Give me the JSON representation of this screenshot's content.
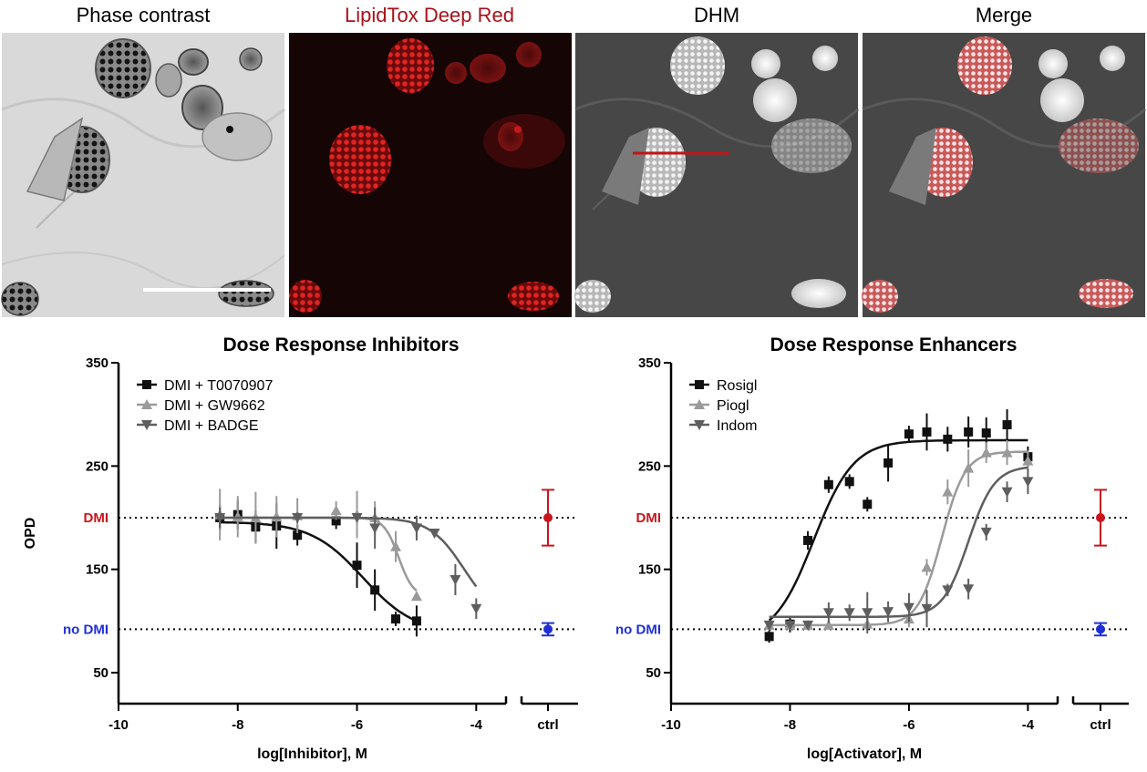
{
  "panels": [
    {
      "id": "phase",
      "title": "Phase contrast",
      "title_color": "#000000"
    },
    {
      "id": "lipid",
      "title": "LipidTox Deep Red",
      "title_color": "#a8121a"
    },
    {
      "id": "dhm",
      "title": "DHM",
      "title_color": "#000000"
    },
    {
      "id": "merge",
      "title": "Merge",
      "title_color": "#000000"
    }
  ],
  "colors": {
    "black_series": "#111111",
    "light_gray_series": "#9a9a9a",
    "dark_gray_series": "#5e5e5e",
    "dmi_ref": "#c8161e",
    "no_dmi_ref": "#1f2fd6",
    "lipid_red": "#d42020"
  },
  "chart_data": [
    {
      "type": "line",
      "title": "Dose Response Inhibitors",
      "xlabel": "log[Inhibitor], M",
      "ylabel": "OPD",
      "xlim": [
        -10,
        -3.5
      ],
      "ylim": [
        20,
        350
      ],
      "xticks": [
        -10,
        -8,
        -6,
        -4
      ],
      "yticks": [
        50,
        150,
        250,
        350
      ],
      "ctrl_label": "ctrl",
      "legend_position": "top-left",
      "reference_lines": [
        {
          "label": "DMI",
          "y": 200,
          "color": "#c8161e",
          "ctrl_mean": 200,
          "ctrl_err": 27
        },
        {
          "label": "no DMI",
          "y": 92,
          "color": "#1f2fd6",
          "ctrl_mean": 92,
          "ctrl_err": 6
        }
      ],
      "series": [
        {
          "name": "DMI + T0070907",
          "marker": "square",
          "color": "#111111",
          "curve": {
            "bottom": 88,
            "top": 196,
            "log_ec50": -5.9,
            "hill": -1.0,
            "x_range": [
              -8.3,
              -5.0
            ]
          },
          "points": [
            {
              "x": -8.3,
              "y": 200,
              "err": 12
            },
            {
              "x": -8.0,
              "y": 203,
              "err": 14
            },
            {
              "x": -7.7,
              "y": 191,
              "err": 16
            },
            {
              "x": -7.35,
              "y": 192,
              "err": 22
            },
            {
              "x": -7.0,
              "y": 183,
              "err": 10
            },
            {
              "x": -6.35,
              "y": 197,
              "err": 8
            },
            {
              "x": -6.0,
              "y": 154,
              "err": 22
            },
            {
              "x": -5.7,
              "y": 130,
              "err": 20
            },
            {
              "x": -5.35,
              "y": 102,
              "err": 7
            },
            {
              "x": -5.0,
              "y": 100,
              "err": 15
            }
          ]
        },
        {
          "name": "DMI + GW9662",
          "marker": "triangle-up",
          "color": "#9a9a9a",
          "curve": {
            "bottom": 123,
            "top": 200,
            "log_ec50": -5.3,
            "hill": -3.5,
            "x_range": [
              -8.3,
              -5.0
            ]
          },
          "points": [
            {
              "x": -8.3,
              "y": 203,
              "err": 25
            },
            {
              "x": -8.0,
              "y": 201,
              "err": 20
            },
            {
              "x": -7.7,
              "y": 200,
              "err": 25
            },
            {
              "x": -7.35,
              "y": 201,
              "err": 20
            },
            {
              "x": -7.0,
              "y": 202,
              "err": 17
            },
            {
              "x": -6.35,
              "y": 207,
              "err": 9
            },
            {
              "x": -6.0,
              "y": 203,
              "err": 23
            },
            {
              "x": -5.7,
              "y": 200,
              "err": 16
            },
            {
              "x": -5.35,
              "y": 172,
              "err": 15
            },
            {
              "x": -5.0,
              "y": 124,
              "err": 4
            }
          ]
        },
        {
          "name": "DMI + BADGE",
          "marker": "triangle-down",
          "color": "#5e5e5e",
          "curve": {
            "bottom": 100,
            "top": 200,
            "log_ec50": -4.2,
            "hill": -1.5,
            "x_range": [
              -8.3,
              -4.0
            ]
          },
          "points": [
            {
              "x": -8.3,
              "y": 200,
              "err": 10
            },
            {
              "x": -7.0,
              "y": 200,
              "err": 5
            },
            {
              "x": -6.0,
              "y": 200,
              "err": 4
            },
            {
              "x": -5.7,
              "y": 190,
              "err": 20
            },
            {
              "x": -5.0,
              "y": 190,
              "err": 12
            },
            {
              "x": -4.7,
              "y": 185,
              "err": 4
            },
            {
              "x": -4.35,
              "y": 140,
              "err": 15
            },
            {
              "x": -4.0,
              "y": 112,
              "err": 10
            }
          ]
        }
      ]
    },
    {
      "type": "line",
      "title": "Dose Response Enhancers",
      "xlabel": "log[Activator], M",
      "ylabel": "",
      "xlim": [
        -10,
        -3.5
      ],
      "ylim": [
        20,
        350
      ],
      "xticks": [
        -10,
        -8,
        -6,
        -4
      ],
      "yticks": [
        50,
        150,
        250,
        350
      ],
      "ctrl_label": "ctrl",
      "legend_position": "top-left",
      "reference_lines": [
        {
          "label": "DMI",
          "y": 200,
          "color": "#c8161e",
          "ctrl_mean": 200,
          "ctrl_err": 27
        },
        {
          "label": "no DMI",
          "y": 92,
          "color": "#1f2fd6",
          "ctrl_mean": 92,
          "ctrl_err": 6
        }
      ],
      "series": [
        {
          "name": "Rosigl",
          "marker": "square",
          "color": "#111111",
          "curve": {
            "bottom": 82,
            "top": 275,
            "log_ec50": -7.6,
            "hill": 1.3,
            "x_range": [
              -8.35,
              -4.0
            ]
          },
          "points": [
            {
              "x": -8.35,
              "y": 85,
              "err": 6
            },
            {
              "x": -8.0,
              "y": 97,
              "err": 8
            },
            {
              "x": -7.7,
              "y": 178,
              "err": 9
            },
            {
              "x": -7.35,
              "y": 232,
              "err": 8
            },
            {
              "x": -7.0,
              "y": 235,
              "err": 7
            },
            {
              "x": -6.7,
              "y": 213,
              "err": 7
            },
            {
              "x": -6.35,
              "y": 253,
              "err": 18
            },
            {
              "x": -6.0,
              "y": 281,
              "err": 8
            },
            {
              "x": -5.7,
              "y": 283,
              "err": 18
            },
            {
              "x": -5.35,
              "y": 276,
              "err": 12
            },
            {
              "x": -5.0,
              "y": 283,
              "err": 15
            },
            {
              "x": -4.7,
              "y": 282,
              "err": 15
            },
            {
              "x": -4.35,
              "y": 290,
              "err": 15
            },
            {
              "x": -4.0,
              "y": 259,
              "err": 10
            }
          ]
        },
        {
          "name": "Piogl",
          "marker": "triangle-up",
          "color": "#9a9a9a",
          "curve": {
            "bottom": 96,
            "top": 264,
            "log_ec50": -5.45,
            "hill": 2.2,
            "x_range": [
              -8.35,
              -4.0
            ]
          },
          "points": [
            {
              "x": -8.35,
              "y": 96,
              "err": 4
            },
            {
              "x": -8.0,
              "y": 96,
              "err": 4
            },
            {
              "x": -7.7,
              "y": 96,
              "err": 4
            },
            {
              "x": -7.35,
              "y": 96,
              "err": 4
            },
            {
              "x": -6.7,
              "y": 97,
              "err": 6
            },
            {
              "x": -6.0,
              "y": 102,
              "err": 8
            },
            {
              "x": -5.7,
              "y": 152,
              "err": 8
            },
            {
              "x": -5.35,
              "y": 225,
              "err": 12
            },
            {
              "x": -5.0,
              "y": 248,
              "err": 18
            },
            {
              "x": -4.7,
              "y": 263,
              "err": 10
            },
            {
              "x": -4.35,
              "y": 263,
              "err": 12
            },
            {
              "x": -4.0,
              "y": 255,
              "err": 10
            }
          ]
        },
        {
          "name": "Indom",
          "marker": "triangle-down",
          "color": "#5e5e5e",
          "curve": {
            "bottom": 104,
            "top": 250,
            "log_ec50": -5.0,
            "hill": 2.0,
            "x_range": [
              -8.35,
              -4.0
            ]
          },
          "points": [
            {
              "x": -8.35,
              "y": 96,
              "err": 4
            },
            {
              "x": -8.0,
              "y": 96,
              "err": 4
            },
            {
              "x": -7.7,
              "y": 96,
              "err": 4
            },
            {
              "x": -7.35,
              "y": 108,
              "err": 10
            },
            {
              "x": -7.0,
              "y": 108,
              "err": 8
            },
            {
              "x": -6.7,
              "y": 108,
              "err": 20
            },
            {
              "x": -6.35,
              "y": 109,
              "err": 10
            },
            {
              "x": -6.0,
              "y": 113,
              "err": 14
            },
            {
              "x": -5.7,
              "y": 112,
              "err": 18
            },
            {
              "x": -5.35,
              "y": 130,
              "err": 6
            },
            {
              "x": -5.0,
              "y": 131,
              "err": 10
            },
            {
              "x": -4.7,
              "y": 186,
              "err": 8
            },
            {
              "x": -4.35,
              "y": 225,
              "err": 10
            },
            {
              "x": -4.0,
              "y": 235,
              "err": 12
            }
          ]
        }
      ]
    }
  ]
}
